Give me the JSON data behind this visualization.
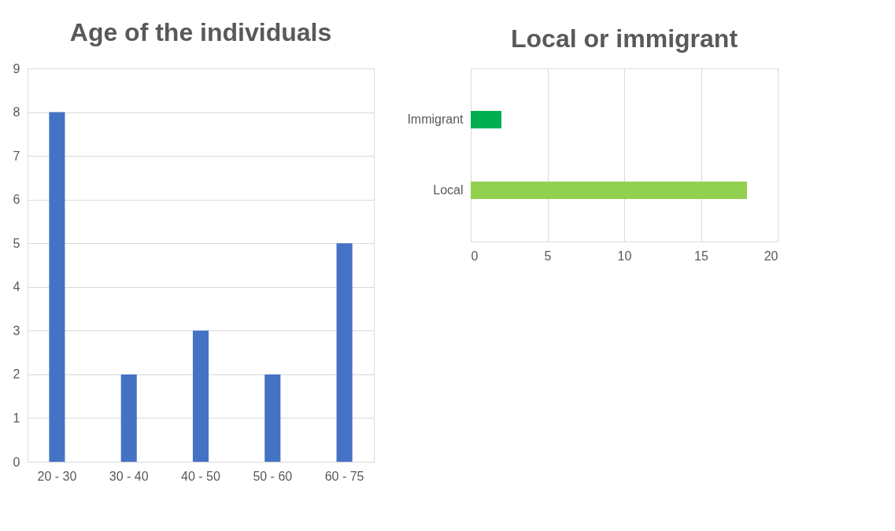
{
  "chart_data": [
    {
      "type": "bar",
      "title": "Age of the individuals",
      "categories": [
        "20 - 30",
        "30 - 40",
        "40 - 50",
        "50 - 60",
        "60 - 75"
      ],
      "values": [
        8,
        2,
        3,
        2,
        5
      ],
      "color": "#4472c4",
      "ylim": [
        0,
        9
      ],
      "yticks": [
        0,
        1,
        2,
        3,
        4,
        5,
        6,
        7,
        8,
        9
      ],
      "grid": "y"
    },
    {
      "type": "bar",
      "orientation": "horizontal",
      "title": "Local or immigrant",
      "categories": [
        "Immigrant",
        "Local"
      ],
      "values": [
        2,
        18
      ],
      "colors": [
        "#00b050",
        "#92d050"
      ],
      "xlim": [
        0,
        20
      ],
      "xticks": [
        0,
        5,
        10,
        15,
        20
      ],
      "grid": "x"
    }
  ]
}
